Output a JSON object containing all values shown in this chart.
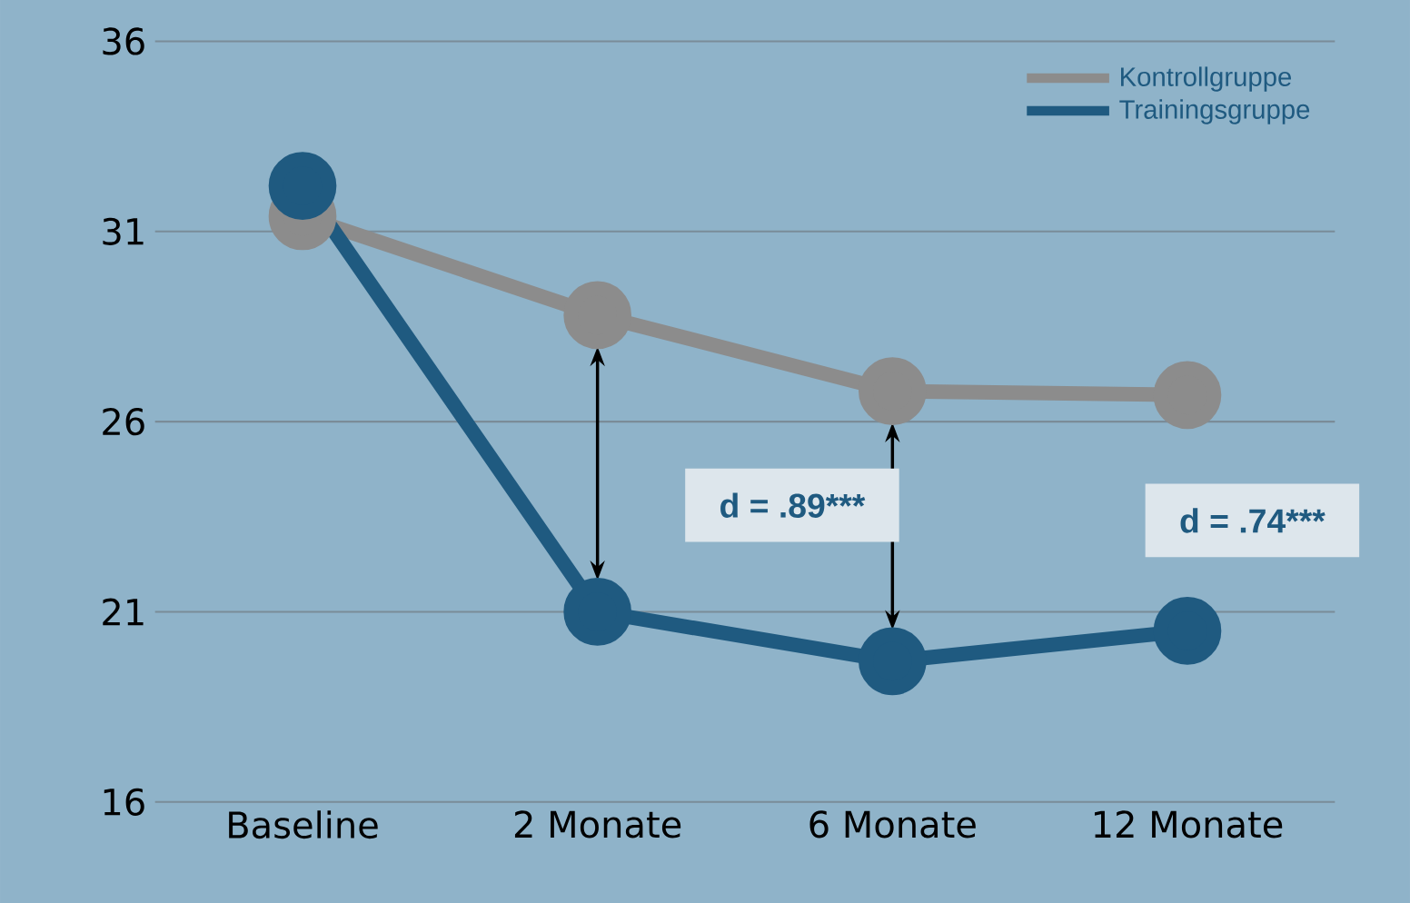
{
  "chart_data": {
    "type": "line",
    "categories": [
      "Baseline",
      "2 Monate",
      "6 Monate",
      "12 Monate"
    ],
    "series": [
      {
        "name": "Kontrollgruppe",
        "color": "#8c8c8c",
        "values": [
          31.4,
          28.8,
          26.8,
          26.7
        ]
      },
      {
        "name": "Trainingsgruppe",
        "color": "#1f5a80",
        "values": [
          32.2,
          21.0,
          19.7,
          20.5
        ]
      }
    ],
    "ylim": [
      16,
      36
    ],
    "yticks": [
      16,
      21,
      26,
      31,
      36
    ],
    "grid": "y",
    "legend": "top right",
    "marker": "circle",
    "line_style": "solid",
    "annotations": [
      "d = .89***",
      "d = .74***"
    ]
  }
}
